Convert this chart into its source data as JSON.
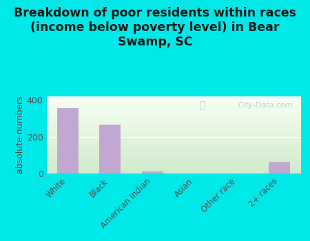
{
  "title": "Breakdown of poor residents within races\n(income below poverty level) in Bear\nSwamp, SC",
  "categories": [
    "White",
    "Black",
    "American Indian",
    "Asian",
    "Other race",
    "2+ races"
  ],
  "values": [
    355,
    265,
    13,
    0,
    0,
    65
  ],
  "bar_color": "#c2a8d0",
  "ylabel": "absolute numbers",
  "ylim": [
    0,
    420
  ],
  "yticks": [
    0,
    200,
    400
  ],
  "background_color": "#00e8e8",
  "plot_bg_color": "#e0edd8",
  "title_fontsize": 12.5,
  "title_color": "#1a1a1a",
  "watermark": "City-Data.com",
  "tick_label_color": "#5a4a4a",
  "axis_label_color": "#5a4a4a"
}
